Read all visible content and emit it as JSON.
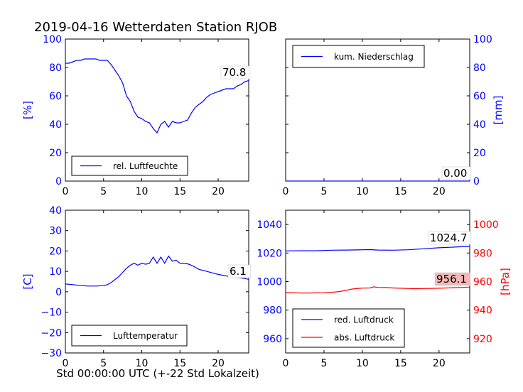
{
  "figure": {
    "title": "2019-04-16 Wetterdaten Station RJOB",
    "xlabel": "Std 00:00:00 UTC (+-22 Std Lokalzeit)"
  },
  "colors": {
    "blue": "#0000ff",
    "red": "#ff0000",
    "last_value_box_red": "#f4b8b8"
  },
  "chart_data": [
    {
      "type": "line",
      "panel": "top-left",
      "ylabel": "[%]",
      "xlim": [
        0,
        24
      ],
      "ylim": [
        0,
        100
      ],
      "xticks": [
        "0",
        "5",
        "10",
        "15",
        "20"
      ],
      "yticks": [
        "0",
        "20",
        "40",
        "60",
        "80",
        "100"
      ],
      "legend": {
        "position": "lower-left",
        "entries": [
          "rel. Luftfeuchte"
        ]
      },
      "last_value_label": "70.8",
      "series": [
        {
          "name": "rel. Luftfeuchte",
          "color": "#0000ff",
          "x": [
            0,
            0.5,
            1,
            1.5,
            2,
            2.5,
            3,
            3.5,
            4,
            4.5,
            5,
            5.5,
            6,
            6.5,
            7,
            7.5,
            8,
            8.5,
            9,
            9.5,
            10,
            10.5,
            11,
            11.5,
            12,
            12.5,
            13,
            13.5,
            14,
            14.5,
            15,
            15.5,
            16,
            16.5,
            17,
            17.5,
            18,
            18.5,
            19,
            19.5,
            20,
            20.5,
            21,
            21.5,
            22,
            22.5,
            23,
            23.5,
            24
          ],
          "y": [
            83,
            83,
            84,
            85,
            85,
            86,
            86,
            86,
            86,
            85,
            85,
            85,
            82,
            78,
            74,
            69,
            60,
            56,
            49,
            45,
            44,
            42,
            41,
            37,
            34,
            40,
            42,
            38,
            42,
            41,
            41,
            42,
            43,
            48,
            52,
            54,
            56,
            59,
            61,
            62,
            63,
            64,
            65,
            65,
            65,
            67,
            68,
            70,
            70.8
          ]
        }
      ]
    },
    {
      "type": "line",
      "panel": "top-right",
      "ylabel": "[mm]",
      "xlim": [
        0,
        24
      ],
      "ylim": [
        0,
        100
      ],
      "xticks": [
        "0",
        "5",
        "10",
        "15",
        "20"
      ],
      "yticks": [
        "0",
        "20",
        "40",
        "60",
        "80",
        "100"
      ],
      "legend": {
        "position": "upper-left",
        "entries": [
          "kum. Niederschlag"
        ]
      },
      "last_value_label": "0.00",
      "series": [
        {
          "name": "kum. Niederschlag",
          "color": "#0000ff",
          "x": [
            0,
            24
          ],
          "y": [
            0,
            0
          ]
        }
      ]
    },
    {
      "type": "line",
      "panel": "bottom-left",
      "ylabel": "[C]",
      "xlim": [
        0,
        24
      ],
      "ylim": [
        -30,
        40
      ],
      "xticks": [
        "0",
        "5",
        "10",
        "15",
        "20"
      ],
      "yticks": [
        "−30",
        "−20",
        "−10",
        "0",
        "10",
        "20",
        "30",
        "40"
      ],
      "legend": {
        "position": "lower-left",
        "entries": [
          "Lufttemperatur"
        ]
      },
      "last_value_label": "6.1",
      "series": [
        {
          "name": "Lufttemperatur",
          "color": "#0000ff",
          "x": [
            0,
            1,
            2,
            3,
            4,
            5,
            5.5,
            6,
            6.5,
            7,
            7.5,
            8,
            8.5,
            9,
            9.5,
            10,
            10.5,
            11,
            11.5,
            12,
            12.5,
            13,
            13.5,
            14,
            14.5,
            15,
            15.5,
            16,
            16.5,
            17,
            17.5,
            18,
            19,
            20,
            21,
            22,
            23,
            24
          ],
          "y": [
            3.8,
            3.5,
            3,
            2.8,
            2.8,
            3,
            3.5,
            4.5,
            6,
            7.5,
            9.5,
            11.5,
            13,
            14,
            13,
            14,
            13.5,
            14,
            17,
            14,
            17,
            14,
            17.5,
            15,
            15.5,
            14,
            13.8,
            13.7,
            13,
            12,
            11,
            10.5,
            9.5,
            8.5,
            7.8,
            7.2,
            6.8,
            6.1
          ]
        }
      ]
    },
    {
      "type": "line",
      "panel": "bottom-right",
      "xlim": [
        0,
        24
      ],
      "ylim": [
        950,
        1050
      ],
      "ylim_right": [
        910,
        1010
      ],
      "ylabel_right": "[hPa]",
      "xticks": [
        "0",
        "5",
        "10",
        "15",
        "20"
      ],
      "yticks": [
        "960",
        "980",
        "1000",
        "1020",
        "1040"
      ],
      "yticks_right": [
        "920",
        "940",
        "960",
        "980",
        "1000"
      ],
      "legend": {
        "position": "lower-left",
        "entries": [
          "red. Luftdruck",
          "abs. Luftdruck"
        ]
      },
      "last_value_labels": [
        "1024.7",
        "956.1"
      ],
      "series": [
        {
          "name": "red. Luftdruck",
          "color": "#0000ff",
          "axis": "left",
          "x": [
            0,
            2,
            4,
            6,
            8,
            10,
            11,
            12,
            14,
            16,
            18,
            20,
            22,
            24
          ],
          "y": [
            1021.5,
            1021.6,
            1021.6,
            1022,
            1022.1,
            1022.3,
            1022.4,
            1022.1,
            1022,
            1022.3,
            1023,
            1023.7,
            1024.2,
            1024.7
          ]
        },
        {
          "name": "abs. Luftdruck",
          "color": "#ff0000",
          "axis": "right",
          "x": [
            0,
            1,
            2,
            3,
            4,
            5,
            6,
            7,
            8,
            8.5,
            9,
            10,
            11,
            11.5,
            12,
            13,
            14,
            15,
            16,
            17,
            18,
            19,
            20,
            21,
            22,
            23,
            24
          ],
          "y": [
            952.3,
            952.2,
            952,
            952,
            952.1,
            952.2,
            952.5,
            953,
            954,
            954.6,
            955,
            955.4,
            955.5,
            956.3,
            955.9,
            955.8,
            955.5,
            955.3,
            955.1,
            955,
            955.1,
            955.2,
            955.3,
            955.5,
            955.7,
            955.9,
            956.1
          ]
        }
      ]
    }
  ]
}
